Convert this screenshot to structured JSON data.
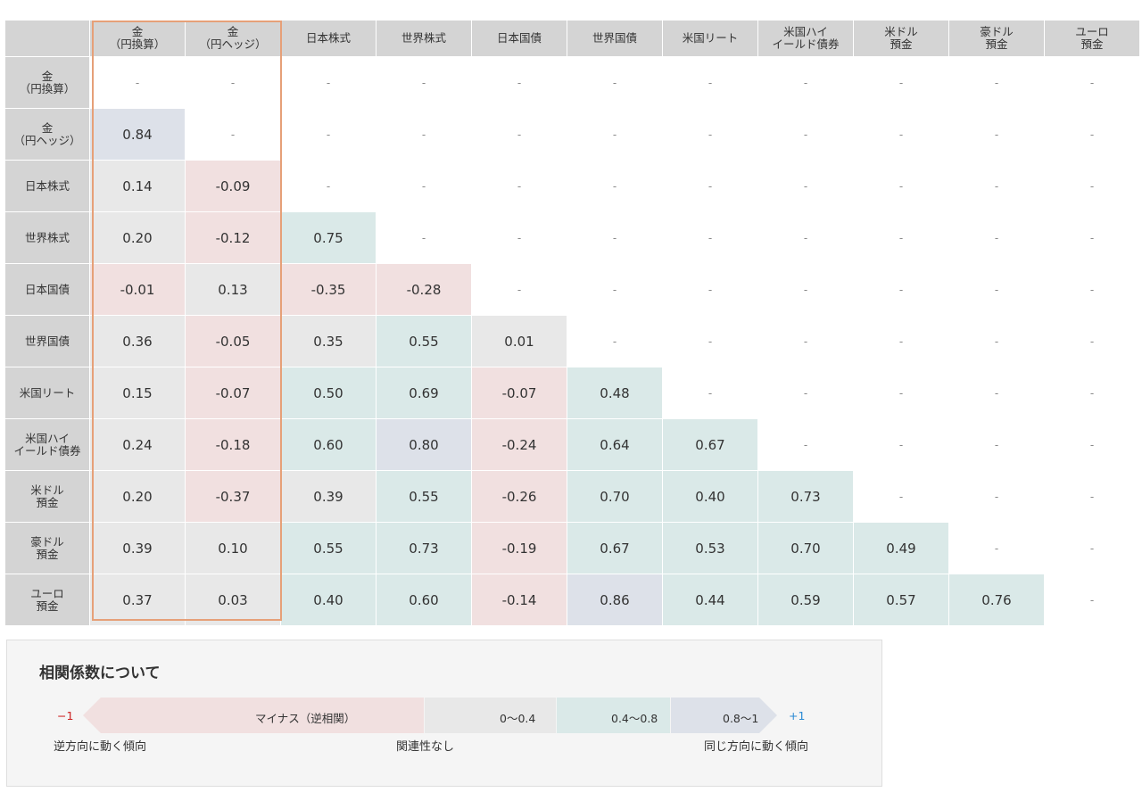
{
  "chart_data": {
    "type": "heatmap",
    "categories": [
      "金\n（円換算）",
      "金\n（円ヘッジ）",
      "日本株式",
      "世界株式",
      "日本国債",
      "世界国債",
      "米国リート",
      "米国ハイ\nイールド債券",
      "米ドル\n預金",
      "豪ドル\n預金",
      "ユーロ\n預金"
    ],
    "empty_symbol": "-",
    "values": [
      [
        null,
        null,
        null,
        null,
        null,
        null,
        null,
        null,
        null,
        null,
        null
      ],
      [
        0.84,
        null,
        null,
        null,
        null,
        null,
        null,
        null,
        null,
        null,
        null
      ],
      [
        0.14,
        -0.09,
        null,
        null,
        null,
        null,
        null,
        null,
        null,
        null,
        null
      ],
      [
        0.2,
        -0.12,
        0.75,
        null,
        null,
        null,
        null,
        null,
        null,
        null,
        null
      ],
      [
        -0.01,
        0.13,
        -0.35,
        -0.28,
        null,
        null,
        null,
        null,
        null,
        null,
        null
      ],
      [
        0.36,
        -0.05,
        0.35,
        0.55,
        0.01,
        null,
        null,
        null,
        null,
        null,
        null
      ],
      [
        0.15,
        -0.07,
        0.5,
        0.69,
        -0.07,
        0.48,
        null,
        null,
        null,
        null,
        null
      ],
      [
        0.24,
        -0.18,
        0.6,
        0.8,
        -0.24,
        0.64,
        0.67,
        null,
        null,
        null,
        null
      ],
      [
        0.2,
        -0.37,
        0.39,
        0.55,
        -0.26,
        0.7,
        0.4,
        0.73,
        null,
        null,
        null
      ],
      [
        0.39,
        0.1,
        0.55,
        0.73,
        -0.19,
        0.67,
        0.53,
        0.7,
        0.49,
        null,
        null
      ],
      [
        0.37,
        0.03,
        0.4,
        0.6,
        -0.14,
        0.86,
        0.44,
        0.59,
        0.57,
        0.76,
        null
      ]
    ],
    "highlighted_columns": [
      0,
      1
    ],
    "colors": {
      "header_bg": "#d4d4d4",
      "negative": "#f1e0e0",
      "weak": "#e8e8e8",
      "moderate": "#dae9e8",
      "strong": "#dde1e9",
      "highlight_border": "#e6a078"
    }
  },
  "legend": {
    "title": "相関係数について",
    "minus_one": "−1",
    "plus_one": "+1",
    "segments": [
      {
        "label": "マイナス（逆相関）",
        "color": "#f1e0e0"
      },
      {
        "label": "0〜0.4",
        "color": "#e8e8e8"
      },
      {
        "label": "0.4〜0.8",
        "color": "#dae9e8"
      },
      {
        "label": "0.8〜1",
        "color": "#dde1e9"
      }
    ],
    "bottom": {
      "left": "逆方向に動く傾向",
      "middle": "関連性なし",
      "right": "同じ方向に動く傾向"
    },
    "minus_color": "#cc2222",
    "plus_color": "#2a8ad4"
  }
}
